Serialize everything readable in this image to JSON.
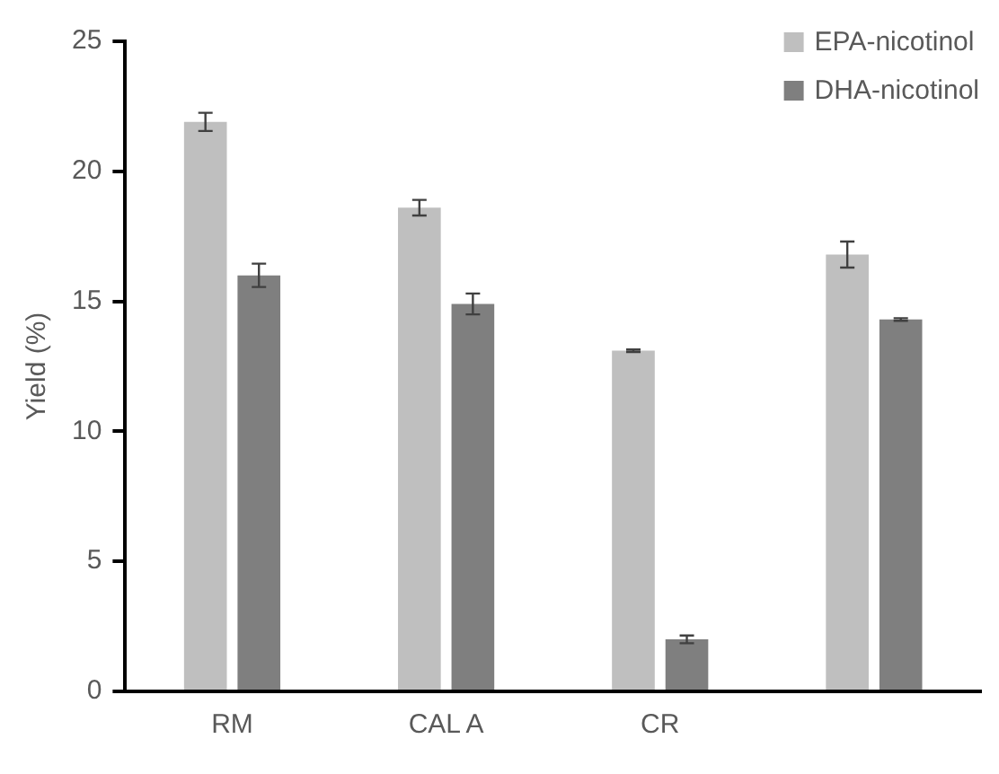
{
  "chart_data": {
    "type": "bar",
    "ylabel": "Yield (%)",
    "categories": [
      "RM",
      "CAL A",
      "CR",
      null
    ],
    "series": [
      {
        "name": "EPA-nicotinol",
        "color": "#bfbfbf",
        "values": [
          21.9,
          18.6,
          13.1,
          16.8
        ],
        "errors": [
          0.35,
          0.3,
          0.05,
          0.5
        ]
      },
      {
        "name": "DHA-nicotinol",
        "color": "#7f7f7f",
        "values": [
          16.0,
          14.9,
          2.0,
          14.3
        ],
        "errors": [
          0.45,
          0.4,
          0.15,
          0.05
        ]
      }
    ],
    "ylim": [
      0,
      25
    ],
    "yticks": [
      0,
      5,
      10,
      15,
      20,
      25
    ],
    "grid": false,
    "legend": "top right"
  }
}
